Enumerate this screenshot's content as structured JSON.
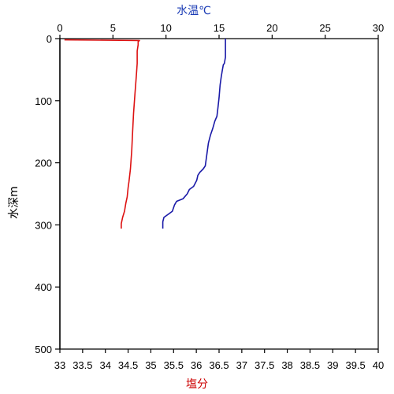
{
  "chart_data": {
    "type": "line",
    "ylabel": "水深m",
    "ylim": [
      0,
      500
    ],
    "y_ticks": [
      0,
      100,
      200,
      300,
      400,
      500
    ],
    "y_inverted": true,
    "top_axis": {
      "label": "水温℃",
      "color": "#1a3bb5",
      "xlim": [
        0,
        30
      ],
      "ticks": [
        0,
        5,
        10,
        15,
        20,
        25,
        30
      ]
    },
    "bottom_axis": {
      "label": "塩分",
      "color": "#cc0000",
      "xlim": [
        33,
        40
      ],
      "ticks": [
        "33",
        "33.5",
        "34",
        "34.5",
        "35",
        "35.5",
        "36",
        "36.5",
        "37",
        "37.5",
        "38",
        "38.5",
        "39",
        "39.5",
        "40"
      ]
    },
    "grid": false,
    "series": [
      {
        "axis": "top",
        "color": "#1a1aa8",
        "points": [
          [
            15.6,
            0
          ],
          [
            15.6,
            8
          ],
          [
            15.6,
            30
          ],
          [
            15.5,
            40
          ],
          [
            15.4,
            42
          ],
          [
            15.3,
            52
          ],
          [
            15.2,
            62
          ],
          [
            15.1,
            75
          ],
          [
            15.0,
            95
          ],
          [
            14.9,
            110
          ],
          [
            14.8,
            125
          ],
          [
            14.6,
            133
          ],
          [
            14.4,
            145
          ],
          [
            14.2,
            155
          ],
          [
            14.0,
            168
          ],
          [
            13.9,
            180
          ],
          [
            13.8,
            193
          ],
          [
            13.7,
            205
          ],
          [
            13.5,
            210
          ],
          [
            13.2,
            215
          ],
          [
            13.0,
            220
          ],
          [
            12.9,
            228
          ],
          [
            12.6,
            238
          ],
          [
            12.2,
            243
          ],
          [
            12.0,
            250
          ],
          [
            11.6,
            258
          ],
          [
            11.0,
            262
          ],
          [
            10.8,
            268
          ],
          [
            10.6,
            278
          ],
          [
            10.2,
            283
          ],
          [
            9.8,
            288
          ],
          [
            9.7,
            295
          ],
          [
            9.7,
            300
          ],
          [
            9.7,
            306
          ]
        ]
      },
      {
        "axis": "bottom",
        "color": "#dd1111",
        "points": [
          [
            33.1,
            2
          ],
          [
            34.75,
            3
          ],
          [
            34.72,
            5
          ],
          [
            34.72,
            10
          ],
          [
            34.7,
            20
          ],
          [
            34.7,
            40
          ],
          [
            34.68,
            60
          ],
          [
            34.65,
            90
          ],
          [
            34.62,
            120
          ],
          [
            34.6,
            150
          ],
          [
            34.58,
            180
          ],
          [
            34.55,
            210
          ],
          [
            34.52,
            230
          ],
          [
            34.5,
            240
          ],
          [
            34.48,
            255
          ],
          [
            34.45,
            265
          ],
          [
            34.42,
            278
          ],
          [
            34.38,
            288
          ],
          [
            34.35,
            298
          ],
          [
            34.35,
            306
          ]
        ]
      }
    ]
  }
}
